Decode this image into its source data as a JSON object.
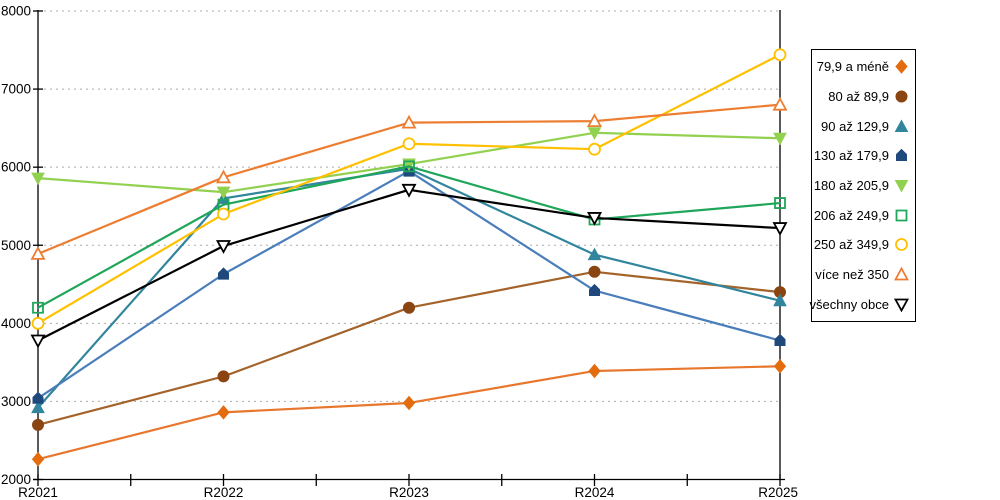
{
  "chart_data": {
    "type": "line",
    "title": "",
    "xlabel": "",
    "ylabel": "",
    "categories": [
      "R2021",
      "R2022",
      "R2023",
      "R2024",
      "R2025"
    ],
    "ylim": [
      2000,
      8000
    ],
    "y_ticks": [
      2000,
      3000,
      4000,
      5000,
      6000,
      7000,
      8000
    ],
    "grid": "horizontal-dashed",
    "gridline_color": "#ababab",
    "legend_position": "right",
    "series": [
      {
        "name": "79,9 a méně",
        "marker": "diamond",
        "fill": "filled",
        "marker_color": "#E36C0F",
        "line_color": "#E8772E",
        "values": [
          2260,
          2860,
          2980,
          3390,
          3450
        ]
      },
      {
        "name": "80 až 89,9",
        "marker": "circle",
        "fill": "filled",
        "marker_color": "#8B4513",
        "line_color": "#A4632A",
        "values": [
          2700,
          3320,
          4200,
          4660,
          4400
        ]
      },
      {
        "name": "90 až 129,9",
        "marker": "triangle-up",
        "fill": "filled",
        "marker_color": "#31859C",
        "line_color": "#31859C",
        "values": [
          2920,
          5600,
          5980,
          4880,
          4290
        ]
      },
      {
        "name": "130 až 179,9",
        "marker": "pentagon",
        "fill": "filled",
        "marker_color": "#1F497D",
        "line_color": "#4A7EBB",
        "values": [
          3040,
          4630,
          5950,
          4420,
          3780
        ]
      },
      {
        "name": "180 až 205,9",
        "marker": "triangle-down",
        "fill": "filled",
        "marker_color": "#92D050",
        "line_color": "#92D050",
        "values": [
          5860,
          5680,
          6040,
          6440,
          6370
        ]
      },
      {
        "name": "206 až 249,9",
        "marker": "square",
        "fill": "open",
        "marker_color": "#1FA65A",
        "line_color": "#1FA65A",
        "values": [
          4200,
          5520,
          6010,
          5330,
          5540
        ]
      },
      {
        "name": "250 až 349,9",
        "marker": "circle",
        "fill": "open",
        "marker_color": "#FFC000",
        "line_color": "#FFC000",
        "values": [
          4000,
          5400,
          6300,
          6230,
          7440
        ]
      },
      {
        "name": "více než 350",
        "marker": "triangle-up",
        "fill": "open",
        "marker_color": "#ED7D31",
        "line_color": "#ED7D31",
        "values": [
          4890,
          5870,
          6570,
          6590,
          6800
        ]
      },
      {
        "name": "všechny obce",
        "marker": "triangle-down",
        "fill": "open",
        "marker_color": "#000000",
        "line_color": "#000000",
        "values": [
          3780,
          4990,
          5710,
          5350,
          5220
        ]
      }
    ]
  }
}
